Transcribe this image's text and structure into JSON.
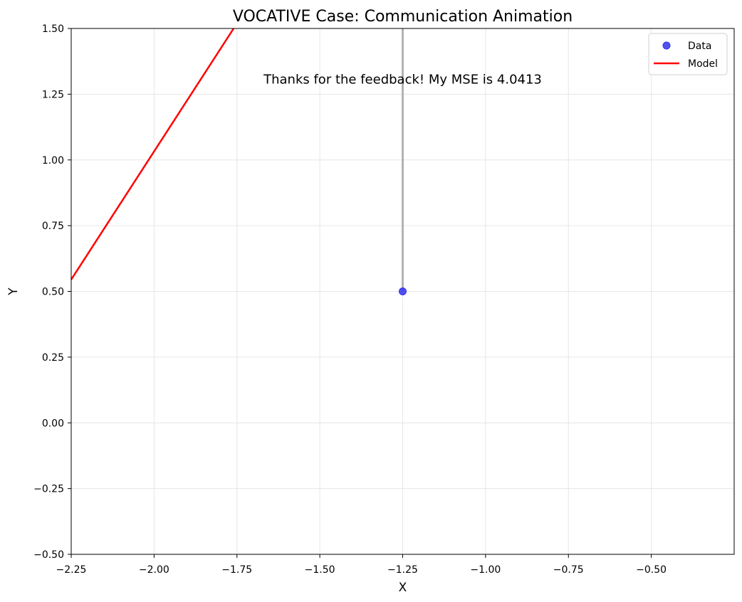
{
  "chart_data": {
    "type": "scatter",
    "title": "VOCATIVE Case: Communication Animation",
    "xlabel": "X",
    "ylabel": "Y",
    "xlim": [
      -2.25,
      -0.25
    ],
    "ylim": [
      -0.5,
      1.5
    ],
    "x_ticks": [
      -2.25,
      -2.0,
      -1.75,
      -1.5,
      -1.25,
      -1.0,
      -0.75,
      -0.5
    ],
    "x_tick_labels": [
      "−2.25",
      "−2.00",
      "−1.75",
      "−1.50",
      "−1.25",
      "−1.00",
      "−0.75",
      "−0.50"
    ],
    "y_ticks": [
      1.5,
      1.25,
      1.0,
      0.75,
      0.5,
      0.25,
      0.0,
      -0.25,
      -0.5
    ],
    "y_tick_labels": [
      "1.50",
      "1.25",
      "1.00",
      "0.75",
      "0.50",
      "0.25",
      "0.00",
      "−0.25",
      "−0.50"
    ],
    "grid": true,
    "legend_position": "top-right",
    "series": [
      {
        "name": "Data",
        "kind": "scatter",
        "color": "#3333ee",
        "points": [
          {
            "x": -1.25,
            "y": 0.5
          }
        ]
      },
      {
        "name": "Model",
        "kind": "line",
        "color": "#ff0000",
        "points": [
          {
            "x": -2.25,
            "y": 0.545
          },
          {
            "x": -1.76,
            "y": 1.5
          }
        ]
      }
    ],
    "residual_lines": [
      {
        "color": "#b3b3b3",
        "points": [
          {
            "x": -1.25,
            "y": 0.5
          },
          {
            "x": -1.25,
            "y": 1.5
          }
        ]
      }
    ],
    "annotation": {
      "text": "Thanks for the feedback! My MSE is 4.0413",
      "x": -1.25,
      "y": 1.29
    }
  }
}
